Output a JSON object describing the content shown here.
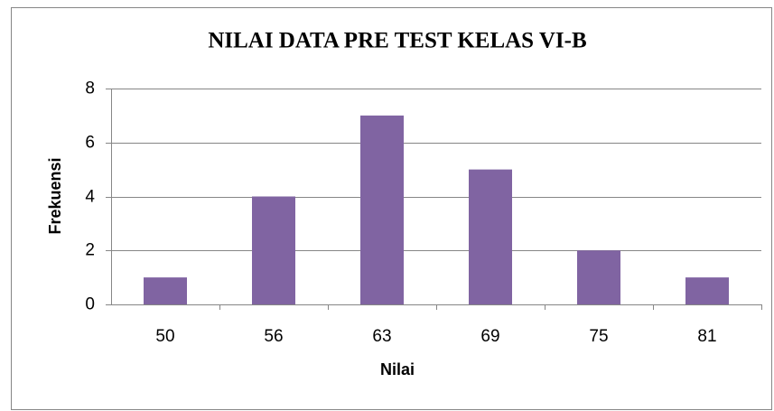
{
  "chart_data": {
    "type": "bar",
    "title": "NILAI DATA PRE TEST KELAS VI-B",
    "x_label": "Nilai",
    "y_label": "Frekuensi",
    "categories": [
      "50",
      "56",
      "63",
      "69",
      "75",
      "81"
    ],
    "values": [
      1,
      4,
      7,
      5,
      2,
      1
    ],
    "color": "#8064a2",
    "ylim": [
      0,
      8
    ],
    "yticks": [
      0,
      2,
      4,
      6,
      8
    ],
    "grid": true
  }
}
